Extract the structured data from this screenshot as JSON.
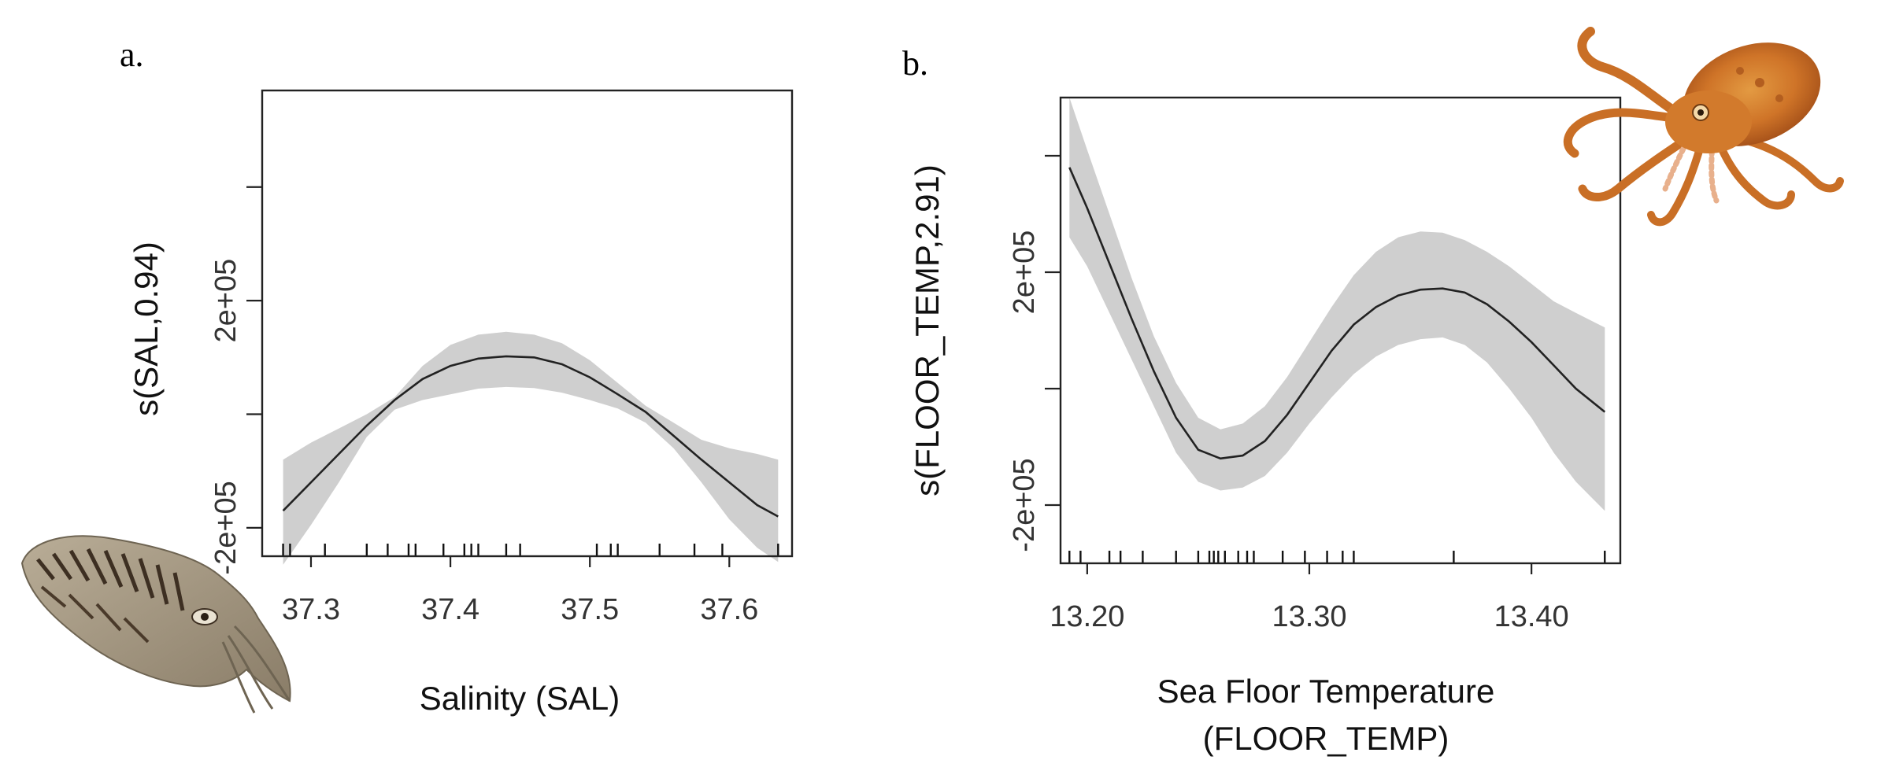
{
  "chart_data": [
    {
      "type": "line",
      "panel_label": "a.",
      "xlabel": "Salinity (SAL)",
      "ylabel": "s(SAL,0.94)",
      "xlim": [
        37.265,
        37.645
      ],
      "ylim": [
        -250000,
        570000
      ],
      "x_ticks": [
        37.3,
        37.4,
        37.5,
        37.6
      ],
      "x_tick_labels": [
        "37.3",
        "37.4",
        "37.5",
        "37.6"
      ],
      "y_ticks": [
        -200000,
        0,
        200000,
        400000
      ],
      "y_tick_labels": [
        "-2e+05",
        "",
        "2e+05",
        ""
      ],
      "series": [
        {
          "name": "fit",
          "x": [
            37.28,
            37.3,
            37.32,
            37.34,
            37.36,
            37.38,
            37.4,
            37.42,
            37.44,
            37.46,
            37.48,
            37.5,
            37.52,
            37.54,
            37.56,
            37.58,
            37.6,
            37.62,
            37.635
          ],
          "y": [
            -170000,
            -120000,
            -70000,
            -20000,
            25000,
            62000,
            85000,
            98000,
            102000,
            100000,
            88000,
            65000,
            35000,
            4000,
            -38000,
            -80000,
            -120000,
            -160000,
            -180000
          ],
          "lower": [
            -265000,
            -195000,
            -120000,
            -40000,
            8000,
            25000,
            35000,
            45000,
            48000,
            46000,
            38000,
            25000,
            10000,
            -15000,
            -60000,
            -120000,
            -185000,
            -235000,
            -260000
          ],
          "upper": [
            -80000,
            -50000,
            -25000,
            0,
            30000,
            85000,
            122000,
            140000,
            145000,
            140000,
            125000,
            95000,
            55000,
            15000,
            -15000,
            -45000,
            -60000,
            -70000,
            -80000
          ]
        }
      ],
      "rug": [
        37.28,
        37.285,
        37.31,
        37.34,
        37.355,
        37.37,
        37.375,
        37.395,
        37.41,
        37.415,
        37.42,
        37.44,
        37.45,
        37.505,
        37.515,
        37.52,
        37.55,
        37.575,
        37.595,
        37.635
      ]
    },
    {
      "type": "line",
      "panel_label": "b.",
      "xlabel": [
        "Sea Floor Temperature",
        "(FLOOR_TEMP)"
      ],
      "ylabel": "s(FLOOR_TEMP,2.91)",
      "xlim": [
        13.188,
        13.44
      ],
      "ylim": [
        -300000,
        500000
      ],
      "x_ticks": [
        13.2,
        13.3,
        13.4
      ],
      "x_tick_labels": [
        "13.20",
        "13.30",
        "13.40"
      ],
      "y_ticks": [
        -200000,
        0,
        200000,
        400000
      ],
      "y_tick_labels": [
        "-2e+05",
        "",
        "2e+05",
        ""
      ],
      "series": [
        {
          "name": "fit",
          "x": [
            13.192,
            13.2,
            13.21,
            13.22,
            13.23,
            13.24,
            13.25,
            13.26,
            13.27,
            13.28,
            13.29,
            13.3,
            13.31,
            13.32,
            13.33,
            13.34,
            13.35,
            13.36,
            13.37,
            13.38,
            13.39,
            13.4,
            13.41,
            13.42,
            13.433
          ],
          "y": [
            380000,
            310000,
            215000,
            120000,
            30000,
            -50000,
            -105000,
            -120000,
            -115000,
            -90000,
            -45000,
            10000,
            65000,
            110000,
            140000,
            160000,
            170000,
            172000,
            165000,
            145000,
            115000,
            80000,
            40000,
            0,
            -40000
          ],
          "lower": [
            260000,
            210000,
            130000,
            50000,
            -30000,
            -110000,
            -160000,
            -175000,
            -170000,
            -150000,
            -110000,
            -60000,
            -15000,
            25000,
            55000,
            75000,
            85000,
            88000,
            75000,
            45000,
            0,
            -50000,
            -110000,
            -160000,
            -210000
          ],
          "upper": [
            500000,
            410000,
            300000,
            190000,
            90000,
            10000,
            -50000,
            -70000,
            -60000,
            -30000,
            20000,
            80000,
            140000,
            195000,
            235000,
            260000,
            270000,
            268000,
            255000,
            235000,
            210000,
            180000,
            150000,
            130000,
            105000
          ]
        }
      ],
      "rug": [
        13.192,
        13.197,
        13.21,
        13.215,
        13.225,
        13.24,
        13.25,
        13.255,
        13.257,
        13.259,
        13.262,
        13.268,
        13.272,
        13.275,
        13.288,
        13.298,
        13.308,
        13.315,
        13.32,
        13.365,
        13.433
      ]
    }
  ],
  "decor": [
    {
      "name": "cuttlefish",
      "position": "bottom-left"
    },
    {
      "name": "octopus",
      "position": "top-right"
    }
  ]
}
